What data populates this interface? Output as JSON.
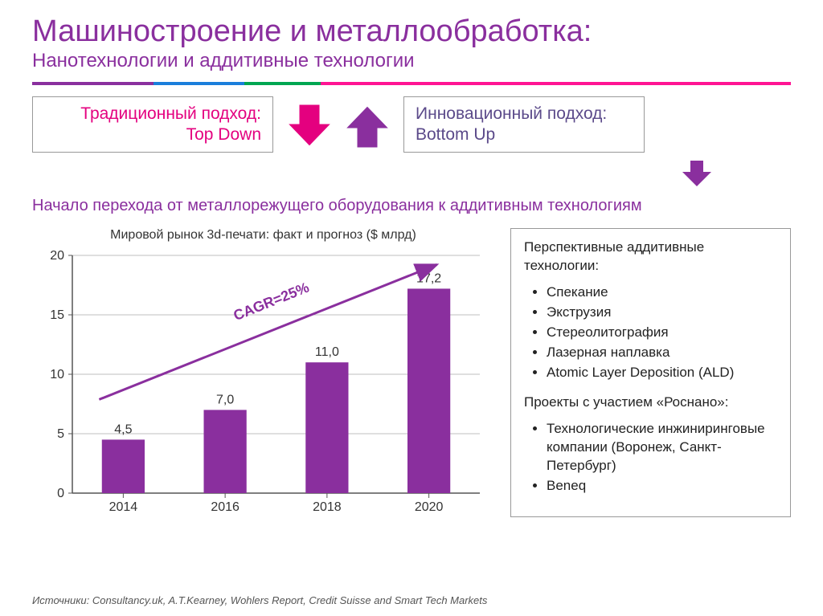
{
  "header": {
    "title": "Машиностроение и металлообработка:",
    "subtitle": "Нанотехнологии и аддитивные технологии"
  },
  "rule_segments": [
    {
      "color": "#8a2f9e",
      "width_pct": 16
    },
    {
      "color": "#1a7edb",
      "width_pct": 12
    },
    {
      "color": "#00a651",
      "width_pct": 10
    },
    {
      "color": "#ff1493",
      "width_pct": 62
    }
  ],
  "approaches": {
    "left_line1": "Традиционный подход:",
    "left_line2": "Top Down",
    "right_line1": "Инновационный подход:",
    "right_line2": "Bottom Up",
    "down_arrow_color": "#e4007f",
    "up_arrow_color": "#8a2f9e",
    "small_arrow_color": "#8a2f9e"
  },
  "transition": "Начало перехода от металлорежущего оборудования к аддитивным технологиям",
  "chart": {
    "type": "bar",
    "title": "Мировой рынок 3d-печати: факт и прогноз ($ млрд)",
    "categories": [
      "2014",
      "2016",
      "2018",
      "2020"
    ],
    "values": [
      4.5,
      7.0,
      11.0,
      17.2
    ],
    "value_labels": [
      "4,5",
      "7,0",
      "11,0",
      "17,2"
    ],
    "bar_color": "#8a2f9e",
    "axis_color": "#555555",
    "grid_color": "#bfbfbf",
    "text_color": "#333333",
    "ylim": [
      0,
      20
    ],
    "ytick_step": 5,
    "bar_width": 0.42,
    "annotation": "CAGR=25%",
    "annotation_color": "#8a2f9e",
    "arrow_color": "#8a2f9e",
    "label_fontsize": 16,
    "tick_fontsize": 16,
    "title_fontsize": 16
  },
  "sidebar": {
    "heading1": "Перспективные аддитивные технологии:",
    "list1": [
      "Спекание",
      "Экструзия",
      "Стереолитография",
      "Лазерная наплавка",
      "Atomic Layer Deposition (ALD)"
    ],
    "heading2": "Проекты с участием «Роснано»:",
    "list2": [
      "Технологические инжиниринговые компании (Воронеж, Санкт-Петербург)",
      "Beneq"
    ]
  },
  "footer": "Источники: Consultancy.uk, A.T.Kearney, Wohlers Report, Credit Suisse and Smart Tech Markets"
}
